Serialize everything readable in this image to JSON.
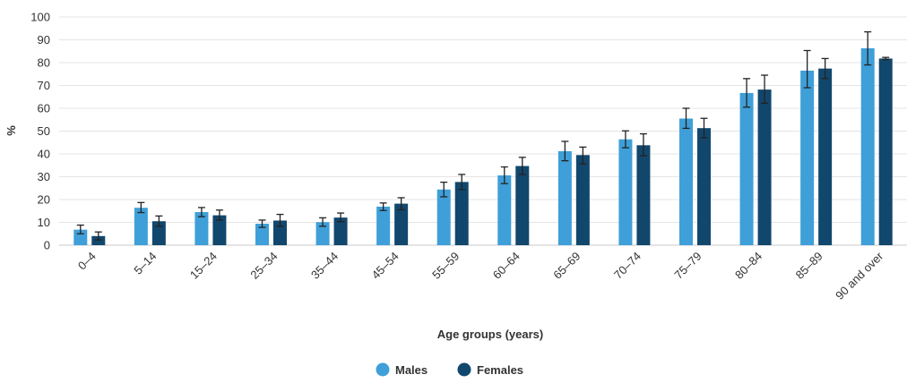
{
  "chart_data": {
    "type": "bar",
    "categories": [
      "0–4",
      "5–14",
      "15–24",
      "25–34",
      "35–44",
      "45–54",
      "55–59",
      "60–64",
      "65–69",
      "70–74",
      "75–79",
      "80–84",
      "85–89",
      "90 and over"
    ],
    "series": [
      {
        "name": "Males",
        "color": "#3f9fd8",
        "values": [
          6.8,
          16.4,
          14.5,
          9.4,
          10.1,
          16.9,
          24.4,
          30.6,
          41.2,
          46.4,
          55.5,
          66.7,
          76.5,
          86.3
        ],
        "err_low": [
          5.0,
          14.3,
          12.5,
          7.8,
          8.3,
          15.2,
          21.2,
          27.0,
          37.0,
          42.7,
          51.2,
          60.5,
          69.0,
          79.0
        ],
        "err_high": [
          8.8,
          18.7,
          16.5,
          11.0,
          12.0,
          18.5,
          27.6,
          34.3,
          45.5,
          50.1,
          60.0,
          73.0,
          85.3,
          93.5
        ]
      },
      {
        "name": "Females",
        "color": "#12476d",
        "values": [
          4.0,
          10.5,
          13.1,
          10.8,
          12.1,
          18.2,
          27.7,
          34.7,
          39.5,
          43.8,
          51.3,
          68.2,
          77.4,
          81.8
        ],
        "err_low": [
          2.3,
          8.3,
          11.0,
          8.3,
          10.3,
          15.5,
          24.4,
          31.0,
          35.6,
          39.2,
          47.0,
          62.2,
          73.0,
          81.3
        ],
        "err_high": [
          5.8,
          12.8,
          15.4,
          13.5,
          14.1,
          20.8,
          31.0,
          38.5,
          43.0,
          48.8,
          55.6,
          74.5,
          81.8,
          82.3
        ]
      }
    ],
    "xlabel": "Age groups (years)",
    "ylabel": "%",
    "ylim": [
      0,
      100
    ],
    "yticks": [
      0,
      10,
      20,
      30,
      40,
      50,
      60,
      70,
      80,
      90,
      100
    ],
    "grid": true,
    "legend": "bottom-center"
  }
}
